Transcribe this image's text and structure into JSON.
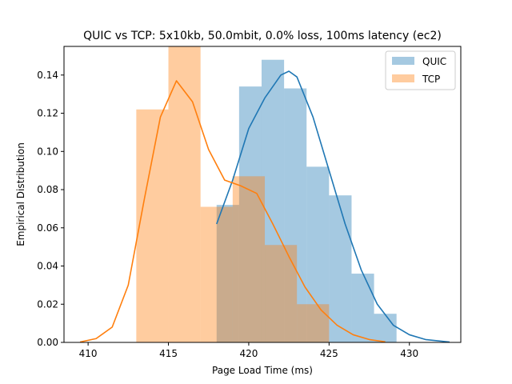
{
  "chart_data": {
    "type": "histogram",
    "title": "QUIC vs TCP: 5x10kb, 50.0mbit, 0.0% loss, 100ms latency (ec2)",
    "xlabel": "Page Load Time (ms)",
    "ylabel": "Empirical Distribution",
    "xlim": [
      408.5,
      433.2
    ],
    "ylim": [
      0,
      0.155
    ],
    "xticks": [
      410,
      415,
      420,
      425,
      430
    ],
    "yticks": [
      0.0,
      0.02,
      0.04,
      0.06,
      0.08,
      0.1,
      0.12,
      0.14
    ],
    "grid": false,
    "legend_position": "top-right",
    "series": [
      {
        "name": "QUIC",
        "color": "#1f77b4",
        "bin_edges": [
          418.0,
          419.4,
          420.8,
          422.2,
          423.6,
          425.0,
          426.4,
          427.8,
          429.2
        ],
        "heights": [
          0.072,
          0.134,
          0.148,
          0.133,
          0.092,
          0.077,
          0.036,
          0.015
        ],
        "kde": [
          [
            418.0,
            0.062
          ],
          [
            419.0,
            0.085
          ],
          [
            420.0,
            0.112
          ],
          [
            421.0,
            0.128
          ],
          [
            422.0,
            0.14
          ],
          [
            422.5,
            0.142
          ],
          [
            423.0,
            0.139
          ],
          [
            424.0,
            0.118
          ],
          [
            425.0,
            0.09
          ],
          [
            426.0,
            0.062
          ],
          [
            427.0,
            0.038
          ],
          [
            428.0,
            0.02
          ],
          [
            429.0,
            0.009
          ],
          [
            430.0,
            0.004
          ],
          [
            431.0,
            0.0015
          ],
          [
            432.5,
            0.0002
          ]
        ]
      },
      {
        "name": "TCP",
        "color": "#ff7f0e",
        "bin_edges": [
          413.0,
          415.0,
          417.0,
          419.0,
          421.0,
          423.0,
          425.0
        ],
        "heights": [
          0.122,
          0.156,
          0.071,
          0.087,
          0.051,
          0.02
        ],
        "kde": [
          [
            409.5,
            0.0002
          ],
          [
            410.5,
            0.002
          ],
          [
            411.5,
            0.008
          ],
          [
            412.5,
            0.03
          ],
          [
            413.5,
            0.075
          ],
          [
            414.5,
            0.118
          ],
          [
            415.5,
            0.137
          ],
          [
            416.5,
            0.126
          ],
          [
            417.5,
            0.101
          ],
          [
            418.5,
            0.085
          ],
          [
            419.5,
            0.082
          ],
          [
            420.5,
            0.078
          ],
          [
            421.5,
            0.062
          ],
          [
            422.5,
            0.045
          ],
          [
            423.5,
            0.029
          ],
          [
            424.5,
            0.017
          ],
          [
            425.5,
            0.009
          ],
          [
            426.5,
            0.004
          ],
          [
            427.5,
            0.0015
          ],
          [
            428.5,
            0.0003
          ]
        ]
      }
    ]
  }
}
